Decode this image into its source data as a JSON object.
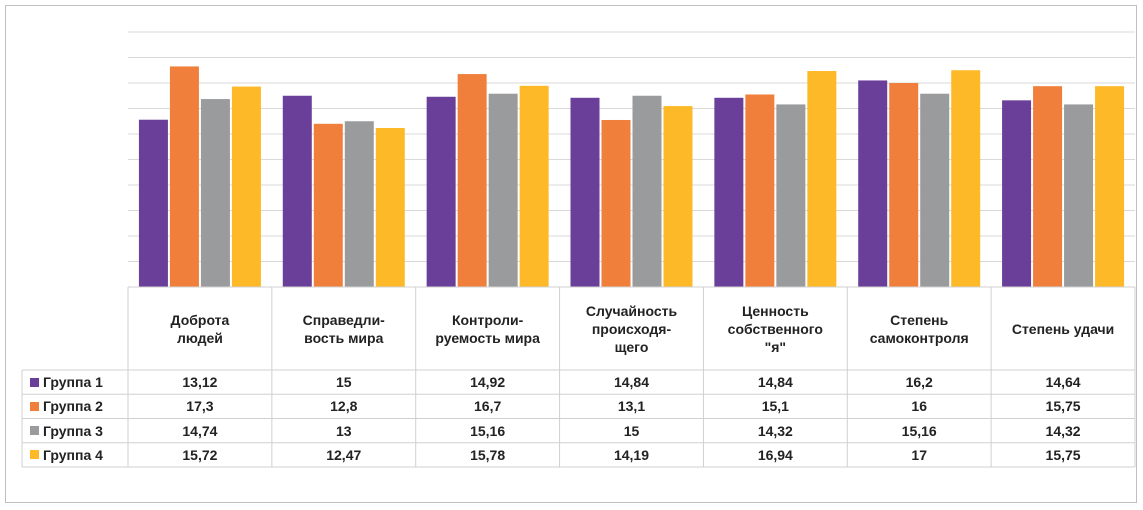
{
  "chart_data": {
    "type": "bar",
    "categories": [
      "Доброта\nлюдей",
      "Справедли-\nвость мира",
      "Контроли-\nруемость мира",
      "Случайность\nпроисходя-\nщего",
      "Ценность\nсобственного\n\"я\"",
      "Степень\nсамоконтроля",
      "Степень удачи"
    ],
    "series": [
      {
        "name": "Группа 1",
        "color": "#6a3f9a",
        "values": [
          13.12,
          15,
          14.92,
          14.84,
          14.84,
          16.2,
          14.64
        ],
        "value_labels": [
          "13,12",
          "15",
          "14,92",
          "14,84",
          "14,84",
          "16,2",
          "14,64"
        ]
      },
      {
        "name": "Группа 2",
        "color": "#f07f3c",
        "values": [
          17.3,
          12.8,
          16.7,
          13.1,
          15.1,
          16,
          15.75
        ],
        "value_labels": [
          "17,3",
          "12,8",
          "16,7",
          "13,1",
          "15,1",
          "16",
          "15,75"
        ]
      },
      {
        "name": "Группа 3",
        "color": "#9a9b9d",
        "values": [
          14.74,
          13,
          15.16,
          15,
          14.32,
          15.16,
          14.32
        ],
        "value_labels": [
          "14,74",
          "13",
          "15,16",
          "15",
          "14,32",
          "15,16",
          "14,32"
        ]
      },
      {
        "name": "Группа 4",
        "color": "#fdb927",
        "values": [
          15.72,
          12.47,
          15.78,
          14.19,
          16.94,
          17,
          15.75
        ],
        "value_labels": [
          "15,72",
          "12,47",
          "15,78",
          "14,19",
          "16,94",
          "17",
          "15,75"
        ]
      }
    ],
    "ylim": [
      0,
      20
    ],
    "yticks": [
      0,
      2,
      4,
      6,
      8,
      10,
      12,
      14,
      16,
      18,
      20
    ],
    "grid": true
  }
}
